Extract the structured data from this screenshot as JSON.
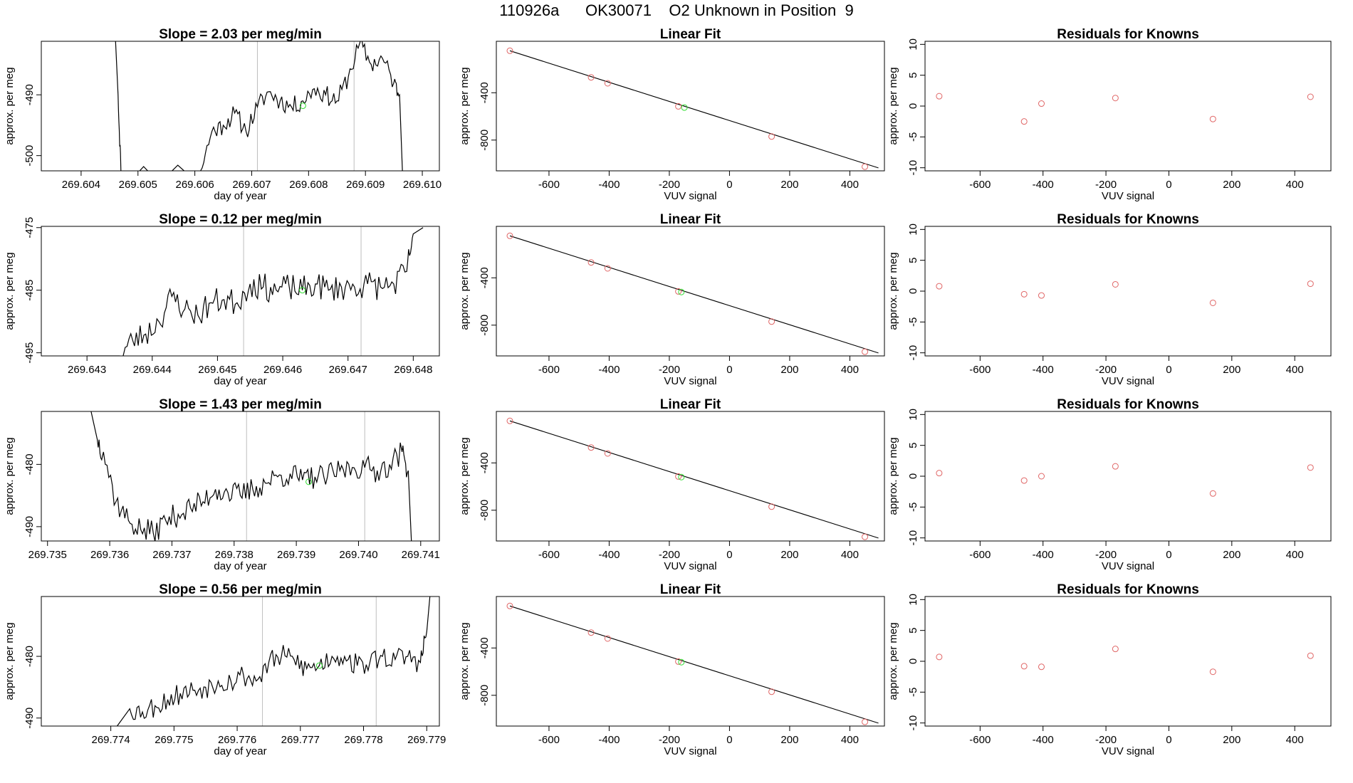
{
  "header": {
    "run_id": "110926a",
    "cylinder": "OK30071",
    "description": "O2 Unknown in Position  9"
  },
  "colors": {
    "trace": "#000000",
    "vline": "#bebebe",
    "known": "#e06666",
    "unknown": "#33dd33",
    "fit": "#000000"
  },
  "chart_data": [
    {
      "type": "line",
      "row": 1,
      "panel": "timeseries",
      "title_prefix": "Slope =",
      "slope": "2.03",
      "title_unit": "per meg/min",
      "xlabel": "day of year",
      "ylabel": "approx. per meg",
      "xlim": [
        269.6033,
        269.6103
      ],
      "ylim": [
        -502.5,
        -481.2
      ],
      "xticks": [
        "269.604",
        "269.605",
        "269.606",
        "269.607",
        "269.608",
        "269.609",
        "269.610"
      ],
      "yticks": [
        "-490",
        "-500"
      ],
      "vlines": [
        269.6071,
        269.6088
      ],
      "unknown_point": {
        "x": 269.6079,
        "y": -491.8
      },
      "series": [
        {
          "x": [
            269.6046,
            269.60465,
            269.6047,
            269.6061,
            269.6063,
            269.6065,
            269.6067,
            269.6069,
            269.6071,
            269.6073,
            269.6075,
            269.6077,
            269.6079,
            269.6081,
            269.6083,
            269.6085,
            269.6087,
            269.6089,
            269.6091,
            269.6093,
            269.6095,
            269.6096,
            269.60965
          ],
          "y": [
            -480,
            -490,
            -502.5,
            -502.5,
            -496,
            -495,
            -493,
            -496,
            -492,
            -489.5,
            -491,
            -492,
            -491,
            -489,
            -490,
            -491,
            -487,
            -481.5,
            -485,
            -484,
            -488,
            -490,
            -502.5
          ]
        }
      ],
      "noise_seed": 11,
      "noise_amp": 1.6
    },
    {
      "type": "scatter",
      "row": 1,
      "panel": "fit",
      "title": "Linear Fit",
      "xlabel": "VUV signal",
      "ylabel": "approx. per meg",
      "xlim": [
        -775,
        515
      ],
      "ylim": [
        -1060,
        35
      ],
      "xticks": [
        -600,
        -400,
        -200,
        0,
        200,
        400
      ],
      "yticks": [
        -400,
        -800
      ],
      "fit_line": {
        "x": [
          -730,
          495
        ],
        "y": [
          -45,
          -1035
        ]
      },
      "knowns": {
        "x": [
          -730,
          -460,
          -405,
          -170,
          140,
          450
        ],
        "y": [
          -45,
          -270,
          -320,
          -515,
          -770,
          -1025
        ]
      },
      "unknown": {
        "x": -150,
        "y": -525
      }
    },
    {
      "type": "scatter",
      "row": 1,
      "panel": "residuals",
      "title": "Residuals for Knowns",
      "xlabel": "VUV signal",
      "ylabel": "approx. per meg",
      "xlim": [
        -775,
        515
      ],
      "ylim": [
        -10.5,
        10.5
      ],
      "xticks": [
        -600,
        -400,
        -200,
        0,
        200,
        400
      ],
      "yticks": [
        10,
        5,
        0,
        -5,
        -10
      ],
      "residuals": {
        "x": [
          -730,
          -460,
          -405,
          -170,
          140,
          450
        ],
        "y": [
          1.6,
          -2.5,
          0.4,
          1.3,
          -2.1,
          1.5
        ]
      }
    },
    {
      "type": "line",
      "row": 2,
      "panel": "timeseries",
      "title_prefix": "Slope =",
      "slope": "0.12",
      "title_unit": "per meg/min",
      "xlabel": "day of year",
      "ylabel": "approx. per meg",
      "xlim": [
        269.6423,
        269.6484
      ],
      "ylim": [
        -495.5,
        -474.8
      ],
      "xticks": [
        "269.643",
        "269.644",
        "269.645",
        "269.646",
        "269.647",
        "269.648"
      ],
      "yticks": [
        "-475",
        "-485",
        "-495"
      ],
      "vlines": [
        269.6454,
        269.6472
      ],
      "unknown_point": {
        "x": 269.6463,
        "y": -485
      },
      "series": [
        {
          "x": [
            269.643,
            269.6435,
            269.6437,
            269.6439,
            269.6441,
            269.6443,
            269.6445,
            269.6447,
            269.6449,
            269.6451,
            269.6453,
            269.6455,
            269.6457,
            269.6459,
            269.6461,
            269.6463,
            269.6465,
            269.6467,
            269.6469,
            269.6471,
            269.6473,
            269.6475,
            269.6477,
            269.6479,
            269.648,
            269.64815
          ],
          "y": [
            -495.5,
            -495.5,
            -493,
            -492,
            -490,
            -486,
            -488,
            -489,
            -487,
            -486.5,
            -487,
            -484,
            -484.5,
            -485,
            -484.5,
            -485,
            -484,
            -485,
            -484.5,
            -484.5,
            -484,
            -484.5,
            -484,
            -482,
            -476,
            -475
          ]
        }
      ],
      "noise_seed": 23,
      "noise_amp": 2.2
    },
    {
      "type": "scatter",
      "row": 2,
      "panel": "fit",
      "title": "Linear Fit",
      "xlabel": "VUV signal",
      "ylabel": "approx. per meg",
      "xlim": [
        -775,
        515
      ],
      "ylim": [
        -1060,
        35
      ],
      "xticks": [
        -600,
        -400,
        -200,
        0,
        200,
        400
      ],
      "yticks": [
        -400,
        -800
      ],
      "fit_line": {
        "x": [
          -730,
          495
        ],
        "y": [
          -45,
          -1035
        ]
      },
      "knowns": {
        "x": [
          -730,
          -460,
          -405,
          -170,
          140,
          450
        ],
        "y": [
          -45,
          -270,
          -320,
          -515,
          -770,
          -1025
        ]
      },
      "unknown": {
        "x": -160,
        "y": -520
      }
    },
    {
      "type": "scatter",
      "row": 2,
      "panel": "residuals",
      "title": "Residuals for Knowns",
      "xlabel": "VUV signal",
      "ylabel": "approx. per meg",
      "xlim": [
        -775,
        515
      ],
      "ylim": [
        -10.5,
        10.5
      ],
      "xticks": [
        -600,
        -400,
        -200,
        0,
        200,
        400
      ],
      "yticks": [
        10,
        5,
        0,
        -5,
        -10
      ],
      "residuals": {
        "x": [
          -730,
          -460,
          -405,
          -170,
          140,
          450
        ],
        "y": [
          0.8,
          -0.5,
          -0.7,
          1.1,
          -1.9,
          1.2
        ]
      }
    },
    {
      "type": "line",
      "row": 3,
      "panel": "timeseries",
      "title_prefix": "Slope =",
      "slope": "1.43",
      "title_unit": "per meg/min",
      "xlabel": "day of year",
      "ylabel": "approx. per meg",
      "xlim": [
        269.7349,
        269.7413
      ],
      "ylim": [
        -492.3,
        -471.5
      ],
      "xticks": [
        "269.735",
        "269.736",
        "269.737",
        "269.738",
        "269.739",
        "269.740",
        "269.741"
      ],
      "yticks": [
        "-480",
        "-490"
      ],
      "vlines": [
        269.7382,
        269.7401
      ],
      "unknown_point": {
        "x": 269.7392,
        "y": -482.8
      },
      "series": [
        {
          "x": [
            269.7357,
            269.7358,
            269.7359,
            269.7361,
            269.7363,
            269.7365,
            269.7367,
            269.7369,
            269.7371,
            269.7373,
            269.7375,
            269.7377,
            269.7379,
            269.7381,
            269.7383,
            269.7385,
            269.7387,
            269.7389,
            269.7391,
            269.7393,
            269.7395,
            269.7397,
            269.7399,
            269.7401,
            269.7403,
            269.7405,
            269.7407,
            269.7408,
            269.74085
          ],
          "y": [
            -471.5,
            -476,
            -478,
            -486,
            -489,
            -490.5,
            -491,
            -489,
            -488,
            -487,
            -486,
            -484,
            -484.5,
            -485,
            -484,
            -483,
            -482,
            -481.5,
            -482.5,
            -482,
            -482,
            -481,
            -480.5,
            -480.5,
            -481,
            -480,
            -478,
            -481,
            -492.3
          ]
        }
      ],
      "noise_seed": 37,
      "noise_amp": 2.0
    },
    {
      "type": "scatter",
      "row": 3,
      "panel": "fit",
      "title": "Linear Fit",
      "xlabel": "VUV signal",
      "ylabel": "approx. per meg",
      "xlim": [
        -775,
        515
      ],
      "ylim": [
        -1060,
        35
      ],
      "xticks": [
        -600,
        -400,
        -200,
        0,
        200,
        400
      ],
      "yticks": [
        -400,
        -800
      ],
      "fit_line": {
        "x": [
          -730,
          495
        ],
        "y": [
          -45,
          -1035
        ]
      },
      "knowns": {
        "x": [
          -730,
          -460,
          -405,
          -170,
          140,
          450
        ],
        "y": [
          -45,
          -270,
          -320,
          -515,
          -770,
          -1025
        ]
      },
      "unknown": {
        "x": -160,
        "y": -520
      }
    },
    {
      "type": "scatter",
      "row": 3,
      "panel": "residuals",
      "title": "Residuals for Knowns",
      "xlabel": "VUV signal",
      "ylabel": "approx. per meg",
      "xlim": [
        -775,
        515
      ],
      "ylim": [
        -10.5,
        10.5
      ],
      "xticks": [
        -600,
        -400,
        -200,
        0,
        200,
        400
      ],
      "yticks": [
        10,
        5,
        0,
        -5,
        -10
      ],
      "residuals": {
        "x": [
          -730,
          -460,
          -405,
          -170,
          140,
          450
        ],
        "y": [
          0.5,
          -0.7,
          0.0,
          1.6,
          -2.8,
          1.4
        ]
      }
    },
    {
      "type": "line",
      "row": 4,
      "panel": "timeseries",
      "title_prefix": "Slope =",
      "slope": "0.56",
      "title_unit": "per meg/min",
      "xlabel": "day of year",
      "ylabel": "approx. per meg",
      "xlim": [
        269.7729,
        269.7792
      ],
      "ylim": [
        -491.3,
        -470.3
      ],
      "xticks": [
        "269.774",
        "269.775",
        "269.776",
        "269.777",
        "269.778",
        "269.779"
      ],
      "yticks": [
        "-480",
        "-490"
      ],
      "vlines": [
        269.7764,
        269.7782
      ],
      "unknown_point": {
        "x": 269.7773,
        "y": -481.5
      },
      "series": [
        {
          "x": [
            269.7741,
            269.7743,
            269.7745,
            269.7747,
            269.7749,
            269.7751,
            269.7753,
            269.7755,
            269.7757,
            269.7759,
            269.7761,
            269.7763,
            269.7765,
            269.7767,
            269.7769,
            269.7771,
            269.7773,
            269.7775,
            269.7777,
            269.7779,
            269.7781,
            269.7783,
            269.7785,
            269.7787,
            269.7789,
            269.779,
            269.77905
          ],
          "y": [
            -491.3,
            -488.5,
            -489,
            -488,
            -487,
            -486,
            -485.5,
            -485,
            -484,
            -484,
            -483,
            -484,
            -481,
            -480,
            -480.5,
            -482,
            -481.5,
            -480,
            -480,
            -481.5,
            -481,
            -480,
            -480.5,
            -480,
            -481,
            -476,
            -470.3
          ]
        }
      ],
      "noise_seed": 53,
      "noise_amp": 1.9
    },
    {
      "type": "scatter",
      "row": 4,
      "panel": "fit",
      "title": "Linear Fit",
      "xlabel": "VUV signal",
      "ylabel": "approx. per meg",
      "xlim": [
        -775,
        515
      ],
      "ylim": [
        -1060,
        35
      ],
      "xticks": [
        -600,
        -400,
        -200,
        0,
        200,
        400
      ],
      "yticks": [
        -400,
        -800
      ],
      "fit_line": {
        "x": [
          -730,
          495
        ],
        "y": [
          -45,
          -1035
        ]
      },
      "knowns": {
        "x": [
          -730,
          -460,
          -405,
          -170,
          140,
          450
        ],
        "y": [
          -45,
          -270,
          -320,
          -515,
          -770,
          -1025
        ]
      },
      "unknown": {
        "x": -160,
        "y": -520
      }
    },
    {
      "type": "scatter",
      "row": 4,
      "panel": "residuals",
      "title": "Residuals for Knowns",
      "xlabel": "VUV signal",
      "ylabel": "approx. per meg",
      "xlim": [
        -775,
        515
      ],
      "ylim": [
        -10.5,
        10.5
      ],
      "xticks": [
        -600,
        -400,
        -200,
        0,
        200,
        400
      ],
      "yticks": [
        10,
        5,
        0,
        -5,
        -10
      ],
      "residuals": {
        "x": [
          -730,
          -460,
          -405,
          -170,
          140,
          450
        ],
        "y": [
          0.7,
          -0.8,
          -0.9,
          2.0,
          -1.7,
          0.9
        ]
      }
    }
  ]
}
